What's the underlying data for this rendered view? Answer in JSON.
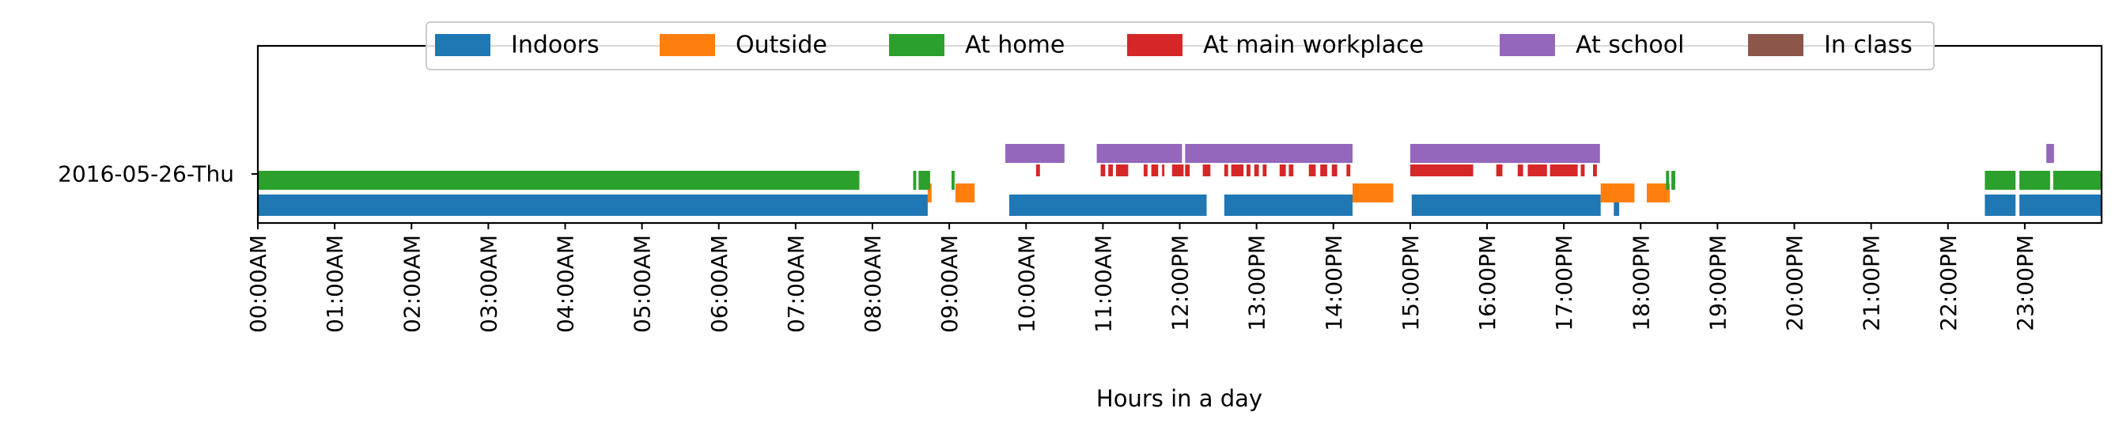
{
  "chart_data": {
    "type": "timeline",
    "title": "",
    "xlabel": "Hours in a day",
    "ylabel": "",
    "xlim": [
      0,
      24
    ],
    "day_label": "2016-05-26-Thu",
    "x_ticks": [
      "00:00AM",
      "01:00AM",
      "02:00AM",
      "03:00AM",
      "04:00AM",
      "05:00AM",
      "06:00AM",
      "07:00AM",
      "08:00AM",
      "09:00AM",
      "10:00AM",
      "11:00AM",
      "12:00PM",
      "13:00PM",
      "14:00PM",
      "15:00PM",
      "16:00PM",
      "17:00PM",
      "18:00PM",
      "19:00PM",
      "20:00PM",
      "21:00PM",
      "22:00PM",
      "23:00PM"
    ],
    "legend_position": "top-center",
    "grid": false,
    "series": [
      {
        "name": "Indoors",
        "color": "#1f77b4",
        "segments": [
          [
            0.0,
            8.72
          ],
          [
            9.78,
            12.35
          ],
          [
            12.58,
            14.25
          ],
          [
            15.02,
            17.48
          ],
          [
            17.65,
            17.72
          ],
          [
            22.48,
            22.88
          ],
          [
            22.93,
            24.0
          ]
        ]
      },
      {
        "name": "Outside",
        "color": "#ff7f0e",
        "segments": [
          [
            8.72,
            8.77
          ],
          [
            9.08,
            9.33
          ],
          [
            14.25,
            14.78
          ],
          [
            17.48,
            17.92
          ],
          [
            18.08,
            18.35
          ],
          [
            18.35,
            18.38
          ]
        ]
      },
      {
        "name": "At home",
        "color": "#2ca02c",
        "segments": [
          [
            0.0,
            7.83
          ],
          [
            8.53,
            8.57
          ],
          [
            8.6,
            8.75
          ],
          [
            9.03,
            9.07
          ],
          [
            18.33,
            18.37
          ],
          [
            18.4,
            18.45
          ],
          [
            22.48,
            22.88
          ],
          [
            22.93,
            23.33
          ],
          [
            23.37,
            24.0
          ]
        ]
      },
      {
        "name": "At main workplace",
        "color": "#d62728",
        "segments": [
          [
            10.13,
            10.18
          ],
          [
            10.97,
            11.03
          ],
          [
            11.07,
            11.13
          ],
          [
            11.17,
            11.33
          ],
          [
            11.53,
            11.58
          ],
          [
            11.63,
            11.72
          ],
          [
            11.77,
            11.8
          ],
          [
            11.9,
            12.05
          ],
          [
            12.07,
            12.13
          ],
          [
            12.3,
            12.4
          ],
          [
            12.58,
            12.63
          ],
          [
            12.67,
            12.83
          ],
          [
            12.87,
            12.92
          ],
          [
            12.97,
            13.03
          ],
          [
            13.08,
            13.13
          ],
          [
            13.3,
            13.38
          ],
          [
            13.42,
            13.48
          ],
          [
            13.68,
            13.77
          ],
          [
            13.83,
            13.92
          ],
          [
            13.98,
            14.05
          ],
          [
            14.17,
            14.22
          ],
          [
            15.0,
            15.82
          ],
          [
            16.12,
            16.2
          ],
          [
            16.4,
            16.47
          ],
          [
            16.53,
            16.78
          ],
          [
            16.82,
            17.18
          ],
          [
            17.22,
            17.27
          ],
          [
            17.38,
            17.43
          ]
        ]
      },
      {
        "name": "At school",
        "color": "#9467bd",
        "segments": [
          [
            9.73,
            10.5
          ],
          [
            10.92,
            12.03
          ],
          [
            12.07,
            14.25
          ],
          [
            15.0,
            17.47
          ],
          [
            23.28,
            23.38
          ]
        ]
      },
      {
        "name": "In class",
        "color": "#8c564b",
        "segments": []
      }
    ]
  }
}
